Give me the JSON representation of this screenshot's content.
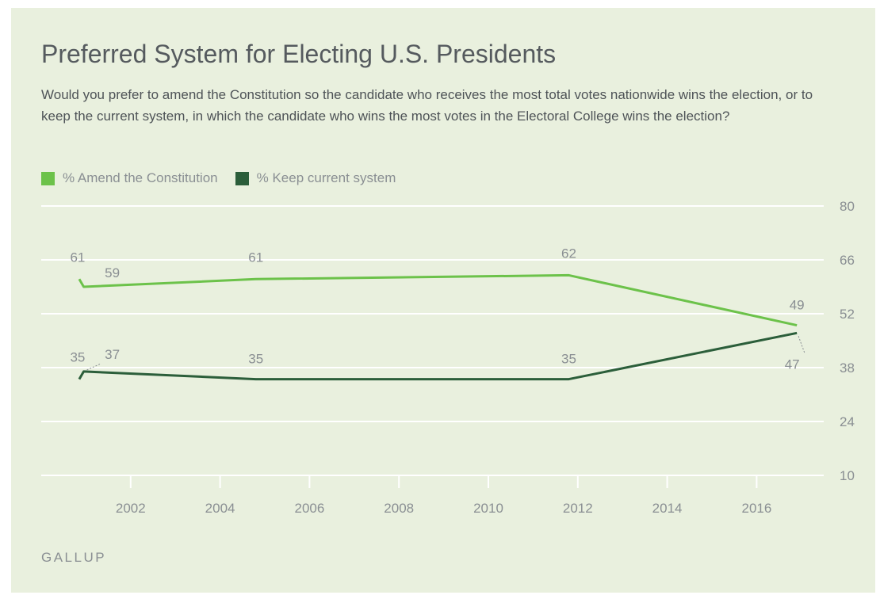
{
  "title": "Preferred System for Electing U.S. Presidents",
  "subtitle": "Would you prefer to amend the Constitution so the candidate who receives the most total votes nationwide wins the election, or to keep the current system, in which the candidate who wins the most votes in the Electoral College wins the election?",
  "source": "GALLUP",
  "colors": {
    "background": "#e9f0de",
    "amend": "#6cc24a",
    "keep": "#2b5e3a",
    "grid": "#ffffff",
    "label": "#8a8f93"
  },
  "chart_data": {
    "type": "line",
    "title": "Preferred System for Electing U.S. Presidents",
    "xlabel": "",
    "ylabel": "",
    "xlim": [
      2000.0,
      2017.5
    ],
    "ylim": [
      10,
      80
    ],
    "yticks": [
      80,
      66,
      52,
      38,
      24,
      10
    ],
    "xticks": [
      2002,
      2004,
      2006,
      2008,
      2010,
      2012,
      2014,
      2016
    ],
    "grid": true,
    "legend_position": "top-left",
    "series": [
      {
        "name": "% Amend the Constitution",
        "color": "#6cc24a",
        "x": [
          2000.85,
          2000.95,
          2004.8,
          2011.8,
          2016.9
        ],
        "y": [
          61,
          59,
          61,
          62,
          49
        ],
        "labels": [
          "61",
          "59",
          "61",
          "62",
          "49"
        ]
      },
      {
        "name": "% Keep current system",
        "color": "#2b5e3a",
        "x": [
          2000.85,
          2000.95,
          2004.8,
          2011.8,
          2016.9
        ],
        "y": [
          35,
          37,
          35,
          35,
          47
        ],
        "labels": [
          "35",
          "37",
          "35",
          "35",
          "47"
        ]
      }
    ]
  }
}
